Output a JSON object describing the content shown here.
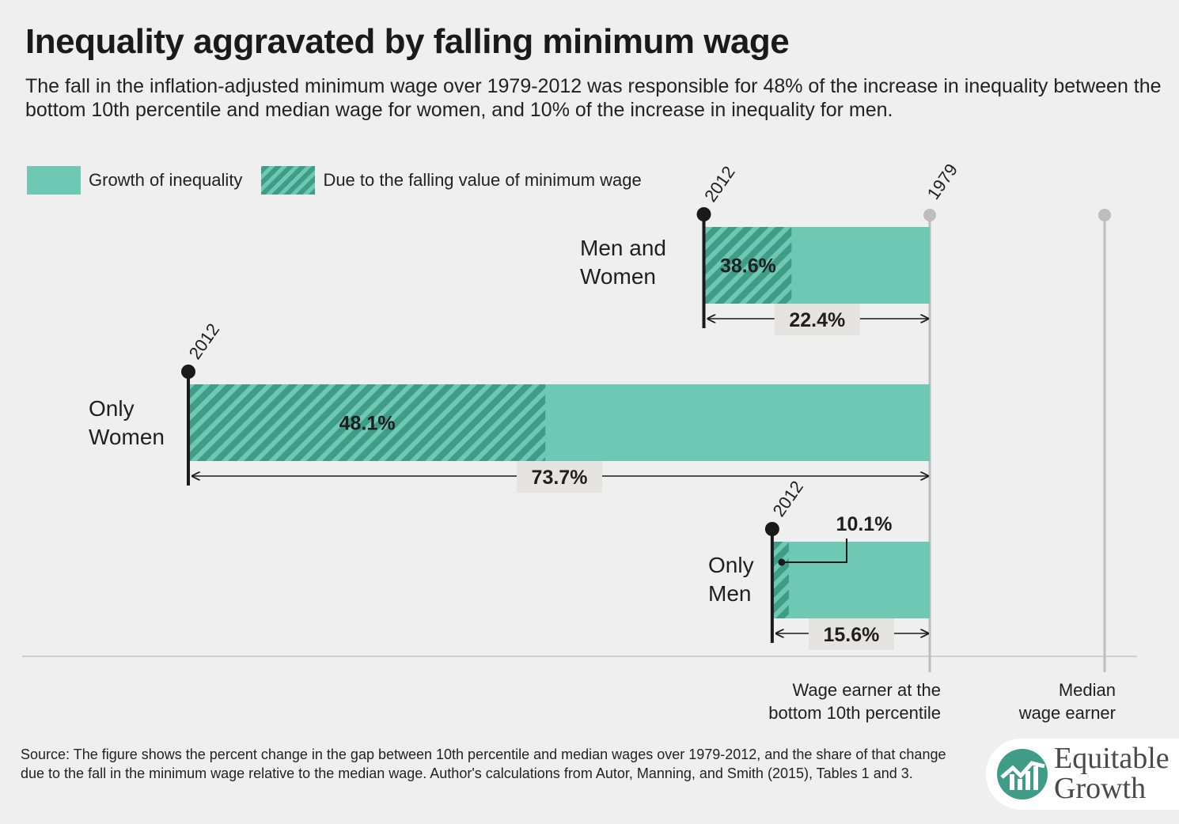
{
  "header": {
    "title": "Inequality aggravated by falling minimum wage",
    "subtitle": "The fall in the inflation-adjusted minimum wage over 1979-2012 was responsible for 48% of the increase in inequality between the bottom 10th percentile and median wage for women, and 10% of the increase in inequality for men."
  },
  "legend": {
    "growth_label": "Growth of inequality",
    "minwage_label": "Due to the falling value of minimum wage"
  },
  "colors": {
    "growth": "#6fc8b4",
    "hatch": "#3e9c87",
    "reference_line": "#bdbdbd",
    "marker": "#1a1a1a"
  },
  "chart_data": {
    "type": "bar",
    "orientation": "horizontal",
    "series": [
      {
        "category_lines": [
          "Men and",
          "Women"
        ],
        "growth_of_inequality_pct": 22.4,
        "growth_label": "22.4%",
        "due_to_min_wage_pct": 38.6,
        "due_label": "38.6%",
        "start_label": "2012"
      },
      {
        "category_lines": [
          "Only",
          "Women"
        ],
        "growth_of_inequality_pct": 73.7,
        "growth_label": "73.7%",
        "due_to_min_wage_pct": 48.1,
        "due_label": "48.1%",
        "start_label": "2012"
      },
      {
        "category_lines": [
          "Only",
          "Men"
        ],
        "growth_of_inequality_pct": 15.6,
        "growth_label": "15.6%",
        "due_to_min_wage_pct": 10.1,
        "due_label": "10.1%",
        "start_label": "2012"
      }
    ],
    "reference_year_label": "1979",
    "axis_labels": {
      "bottom10_lines": [
        "Wage earner at the",
        "bottom 10th percentile"
      ],
      "median_lines": [
        "Median",
        "wage earner"
      ]
    }
  },
  "footer": {
    "source": "Source: The figure shows the percent change in the gap between 10th percentile and median wages over 1979-2012, and the share of that change due to the fall in the minimum wage relative to the median wage. Author's calculations from Autor, Manning, and Smith (2015), Tables 1 and 3.",
    "logo_line1": "Equitable",
    "logo_line2": "Growth"
  }
}
